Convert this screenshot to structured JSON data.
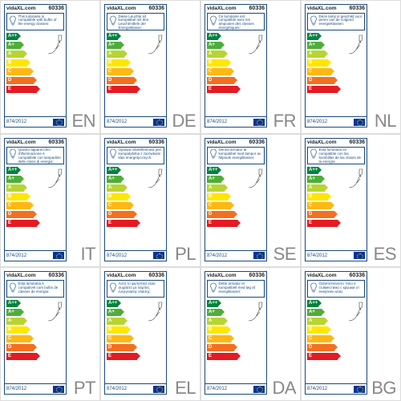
{
  "brand": "vidaXL.com",
  "sku": "60336",
  "regulation": "874/2012",
  "energy_classes": [
    "A++",
    "A+",
    "A",
    "B",
    "C",
    "D",
    "E"
  ],
  "bar_colors": [
    "#00843d",
    "#4eae3a",
    "#b7d433",
    "#ffe600",
    "#fdb813",
    "#f37021",
    "#e31b23"
  ],
  "border_color": "#1a4a7a",
  "lang_color": "#888888",
  "bulb_stroke": "#1a4a7a",
  "lamp_stroke": "#444444",
  "eu_flag_bg": "#003399",
  "eu_flag_stars": "#ffcc00",
  "cells": [
    {
      "lang": "EN",
      "text": "This luminaire is compatible with bulbs of the energy classes:"
    },
    {
      "lang": "DE",
      "text": "Diese Leuchte ist kompatibel mit den Leuchtmitteln der Energieklasse:"
    },
    {
      "lang": "FR",
      "text": "Ce luminaire est compatible avec les ampoules des classes énergétiques:"
    },
    {
      "lang": "NL",
      "text": "Deze lamp is geschikt voor peren van de volgend energieklassen:"
    },
    {
      "lang": "IT",
      "text": "Questo apparecchio d'illuminazione è compatibile con lampadine delle classi di energia:"
    },
    {
      "lang": "PL",
      "text": "Oprawa oświetleniowa jest kompatybilna z żarówkami klas energetycznych:"
    },
    {
      "lang": "SE",
      "text": "Denna armatur är kompatibel med lampor av följande energiklasser:"
    },
    {
      "lang": "ES",
      "text": "Esta luminaria es compatible con las bombillas de las clases de la energía:"
    },
    {
      "lang": "PT",
      "text": "Esta luminária é compatível com bulbs de classes de energia:"
    },
    {
      "lang": "EL",
      "text": "Αυτό το φωτιστικό είναι συμβατό με λάμπες ενεργειακής κλάσης:"
    },
    {
      "lang": "DA",
      "text": "Dette armatur er kompatibelt med løg af energiklasser:"
    },
    {
      "lang": "BG",
      "text": "Осветителното тяло е съвместимо с крушки от енергиен клас:"
    }
  ]
}
